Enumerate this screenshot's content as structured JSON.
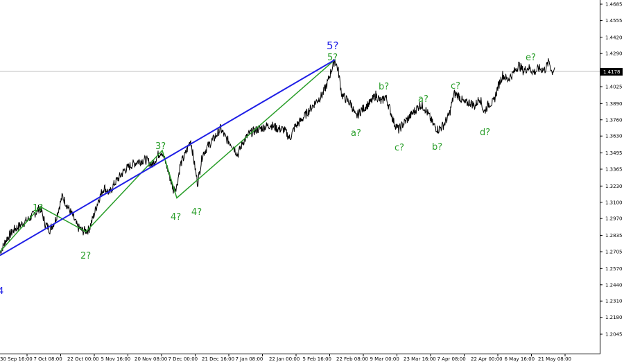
{
  "chart_data": {
    "type": "line",
    "symbol_price": "1.4178",
    "colors": {
      "price": "#000000",
      "green_wave": "#2a9e2a",
      "blue_wave": "#1f1fe6",
      "current_line": "#c0c0c0",
      "axis": "#000000"
    },
    "x_tick_labels": [
      "30 Sep 16:00",
      "7 Oct 08:00",
      "22 Oct 00:00",
      "5 Nov 16:00",
      "20 Nov 08:00",
      "7 Dec 00:00",
      "21 Dec 16:00",
      "7 Jan 08:00",
      "22 Jan 00:00",
      "5 Feb 16:00",
      "22 Feb 08:00",
      "9 Mar 00:00",
      "23 Mar 16:00",
      "7 Apr 08:00",
      "22 Apr 00:00",
      "6 May 16:00",
      "21 May 08:00"
    ],
    "y_ticks": [
      "1.4685",
      "1.4555",
      "1.4420",
      "1.4290",
      "1.4155",
      "1.4025",
      "1.3890",
      "1.3760",
      "1.3630",
      "1.3495",
      "1.3365",
      "1.3230",
      "1.3100",
      "1.2970",
      "1.2835",
      "1.2705",
      "1.2570",
      "1.2440",
      "1.2310",
      "1.2180",
      "1.2045"
    ],
    "ylim": [
      1.2045,
      1.4685
    ],
    "price_path": [
      {
        "x": 0,
        "y": 1.27
      },
      {
        "x": 10,
        "y": 1.281
      },
      {
        "x": 20,
        "y": 1.288
      },
      {
        "x": 30,
        "y": 1.292
      },
      {
        "x": 40,
        "y": 1.296
      },
      {
        "x": 50,
        "y": 1.301
      },
      {
        "x": 58,
        "y": 1.306
      },
      {
        "x": 65,
        "y": 1.293
      },
      {
        "x": 72,
        "y": 1.288
      },
      {
        "x": 80,
        "y": 1.296
      },
      {
        "x": 90,
        "y": 1.315
      },
      {
        "x": 98,
        "y": 1.306
      },
      {
        "x": 105,
        "y": 1.299
      },
      {
        "x": 112,
        "y": 1.29
      },
      {
        "x": 120,
        "y": 1.287
      },
      {
        "x": 128,
        "y": 1.288
      },
      {
        "x": 135,
        "y": 1.299
      },
      {
        "x": 142,
        "y": 1.312
      },
      {
        "x": 150,
        "y": 1.322
      },
      {
        "x": 158,
        "y": 1.317
      },
      {
        "x": 165,
        "y": 1.325
      },
      {
        "x": 172,
        "y": 1.33
      },
      {
        "x": 180,
        "y": 1.336
      },
      {
        "x": 190,
        "y": 1.34
      },
      {
        "x": 200,
        "y": 1.343
      },
      {
        "x": 210,
        "y": 1.344
      },
      {
        "x": 220,
        "y": 1.34
      },
      {
        "x": 228,
        "y": 1.348
      },
      {
        "x": 233,
        "y": 1.351
      },
      {
        "x": 240,
        "y": 1.34
      },
      {
        "x": 245,
        "y": 1.33
      },
      {
        "x": 250,
        "y": 1.32
      },
      {
        "x": 255,
        "y": 1.323
      },
      {
        "x": 260,
        "y": 1.34
      },
      {
        "x": 267,
        "y": 1.348
      },
      {
        "x": 275,
        "y": 1.36
      },
      {
        "x": 280,
        "y": 1.342
      },
      {
        "x": 285,
        "y": 1.325
      },
      {
        "x": 292,
        "y": 1.348
      },
      {
        "x": 300,
        "y": 1.355
      },
      {
        "x": 310,
        "y": 1.362
      },
      {
        "x": 318,
        "y": 1.369
      },
      {
        "x": 326,
        "y": 1.361
      },
      {
        "x": 335,
        "y": 1.356
      },
      {
        "x": 343,
        "y": 1.348
      },
      {
        "x": 350,
        "y": 1.358
      },
      {
        "x": 360,
        "y": 1.365
      },
      {
        "x": 370,
        "y": 1.368
      },
      {
        "x": 380,
        "y": 1.37
      },
      {
        "x": 390,
        "y": 1.372
      },
      {
        "x": 400,
        "y": 1.369
      },
      {
        "x": 410,
        "y": 1.368
      },
      {
        "x": 418,
        "y": 1.361
      },
      {
        "x": 425,
        "y": 1.37
      },
      {
        "x": 435,
        "y": 1.376
      },
      {
        "x": 445,
        "y": 1.383
      },
      {
        "x": 455,
        "y": 1.39
      },
      {
        "x": 465,
        "y": 1.396
      },
      {
        "x": 472,
        "y": 1.405
      },
      {
        "x": 478,
        "y": 1.416
      },
      {
        "x": 483,
        "y": 1.424
      },
      {
        "x": 488,
        "y": 1.415
      },
      {
        "x": 493,
        "y": 1.396
      },
      {
        "x": 500,
        "y": 1.392
      },
      {
        "x": 507,
        "y": 1.388
      },
      {
        "x": 513,
        "y": 1.378
      },
      {
        "x": 520,
        "y": 1.383
      },
      {
        "x": 528,
        "y": 1.387
      },
      {
        "x": 535,
        "y": 1.39
      },
      {
        "x": 542,
        "y": 1.396
      },
      {
        "x": 550,
        "y": 1.39
      },
      {
        "x": 556,
        "y": 1.395
      },
      {
        "x": 562,
        "y": 1.385
      },
      {
        "x": 568,
        "y": 1.374
      },
      {
        "x": 575,
        "y": 1.368
      },
      {
        "x": 582,
        "y": 1.373
      },
      {
        "x": 590,
        "y": 1.378
      },
      {
        "x": 598,
        "y": 1.383
      },
      {
        "x": 606,
        "y": 1.388
      },
      {
        "x": 612,
        "y": 1.386
      },
      {
        "x": 618,
        "y": 1.38
      },
      {
        "x": 625,
        "y": 1.372
      },
      {
        "x": 632,
        "y": 1.368
      },
      {
        "x": 640,
        "y": 1.372
      },
      {
        "x": 648,
        "y": 1.38
      },
      {
        "x": 655,
        "y": 1.397
      },
      {
        "x": 662,
        "y": 1.395
      },
      {
        "x": 670,
        "y": 1.389
      },
      {
        "x": 678,
        "y": 1.39
      },
      {
        "x": 685,
        "y": 1.387
      },
      {
        "x": 692,
        "y": 1.394
      },
      {
        "x": 698,
        "y": 1.382
      },
      {
        "x": 705,
        "y": 1.389
      },
      {
        "x": 712,
        "y": 1.39
      },
      {
        "x": 718,
        "y": 1.402
      },
      {
        "x": 725,
        "y": 1.412
      },
      {
        "x": 732,
        "y": 1.408
      },
      {
        "x": 740,
        "y": 1.413
      },
      {
        "x": 748,
        "y": 1.42
      },
      {
        "x": 755,
        "y": 1.415
      },
      {
        "x": 762,
        "y": 1.418
      },
      {
        "x": 770,
        "y": 1.414
      },
      {
        "x": 778,
        "y": 1.417
      },
      {
        "x": 786,
        "y": 1.416
      },
      {
        "x": 792,
        "y": 1.423
      },
      {
        "x": 796,
        "y": 1.414
      },
      {
        "x": 800,
        "y": 1.4178
      }
    ],
    "green_wave_path": [
      {
        "x": 0,
        "y": 1.2705
      },
      {
        "x": 58,
        "y": 1.3065
      },
      {
        "x": 124,
        "y": 1.2865
      },
      {
        "x": 234,
        "y": 1.3515
      },
      {
        "x": 255,
        "y": 1.3135
      },
      {
        "x": 483,
        "y": 1.424
      }
    ],
    "blue_wave_path": [
      {
        "x": 0,
        "y": 1.2675
      },
      {
        "x": 483,
        "y": 1.424
      }
    ],
    "wave_labels": {
      "w1": "1?",
      "w2": "2?",
      "w3": "3?",
      "w4a": "4?",
      "w4b": "4?",
      "w5": "5?",
      "w5blue": "5?",
      "a1": "a?",
      "b1": "b?",
      "c1": "c?",
      "a2": "a?",
      "b2": "b?",
      "c2": "c?",
      "d": "d?",
      "e": "e?",
      "left_4": "4"
    }
  }
}
